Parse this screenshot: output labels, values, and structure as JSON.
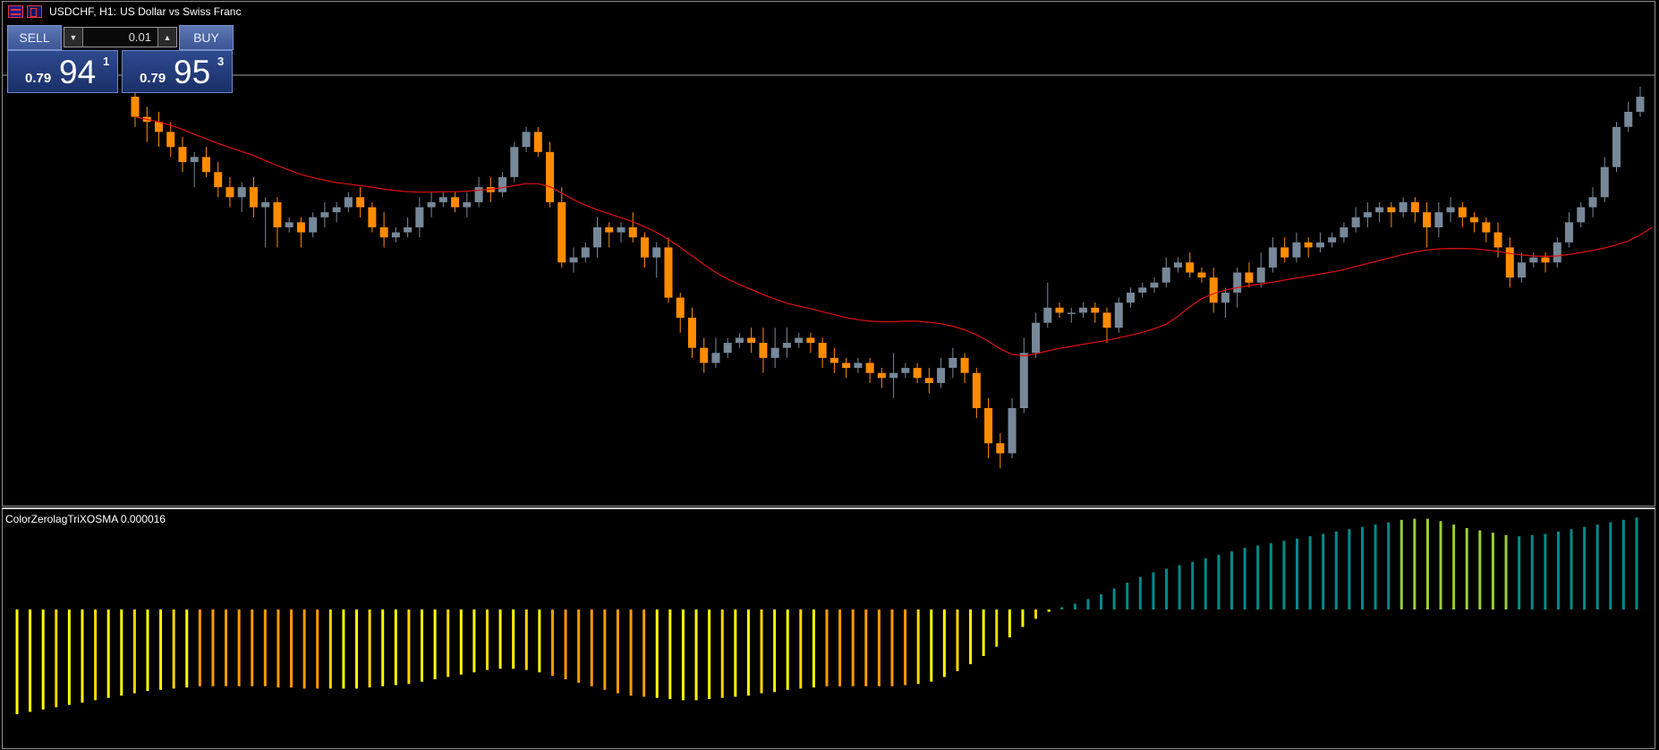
{
  "header": {
    "symbol_label": "USDCHF, H1:",
    "description": "US Dollar vs Swiss Franc"
  },
  "trade_panel": {
    "sell_label": "SELL",
    "buy_label": "BUY",
    "lot_value": "0.01",
    "sell_price": {
      "small": "0.79",
      "big": "94",
      "sup": "1"
    },
    "buy_price": {
      "small": "0.79",
      "big": "95",
      "sup": "3"
    }
  },
  "indicator": {
    "label": "ColorZerolagTriXOSMA 0.000016"
  },
  "colors": {
    "bull_candle": "#778899",
    "bear_candle": "#ff8c00",
    "ma_line": "#e01010",
    "price_line": "#a0a0a0",
    "hist_yellow": "#ffff00",
    "hist_gold": "#ffd700",
    "hist_orange": "#ff9900",
    "hist_teal": "#008b8b",
    "hist_lime": "#9acd32"
  },
  "chart_data": [
    {
      "type": "candlestick",
      "symbol": "USDCHF",
      "timeframe": "H1",
      "title": "US Dollar vs Swiss Franc",
      "ohlc": [
        [
          100,
          96,
          104,
          94
        ],
        [
          96,
          95,
          98,
          91
        ],
        [
          95,
          93,
          97,
          90
        ],
        [
          93,
          90,
          95,
          88
        ],
        [
          90,
          87,
          92,
          85
        ],
        [
          87,
          88,
          89,
          82
        ],
        [
          88,
          85,
          90,
          84
        ],
        [
          85,
          82,
          87,
          80
        ],
        [
          82,
          80,
          84,
          78
        ],
        [
          80,
          82,
          83,
          77
        ],
        [
          82,
          78,
          84,
          76
        ],
        [
          78,
          79,
          80,
          70
        ],
        [
          79,
          74,
          80,
          70
        ],
        [
          74,
          75,
          76,
          73
        ],
        [
          75,
          73,
          76,
          70
        ],
        [
          73,
          76,
          77,
          72
        ],
        [
          76,
          77,
          79,
          74
        ],
        [
          77,
          78,
          79,
          75
        ],
        [
          78,
          80,
          81,
          77
        ],
        [
          80,
          78,
          82,
          76
        ],
        [
          78,
          74,
          79,
          73
        ],
        [
          74,
          72,
          77,
          70
        ],
        [
          72,
          73,
          74,
          71
        ],
        [
          73,
          74,
          76,
          72
        ],
        [
          74,
          78,
          80,
          72
        ],
        [
          78,
          79,
          81,
          76
        ],
        [
          79,
          80,
          81,
          78
        ],
        [
          80,
          78,
          81,
          77
        ],
        [
          78,
          79,
          81,
          76
        ],
        [
          79,
          82,
          84,
          78
        ],
        [
          82,
          81,
          84,
          79
        ],
        [
          81,
          84,
          85,
          80
        ],
        [
          84,
          90,
          91,
          83
        ],
        [
          90,
          93,
          94,
          89
        ],
        [
          93,
          89,
          94,
          88
        ],
        [
          89,
          79,
          91,
          78
        ],
        [
          79,
          67,
          82,
          66
        ],
        [
          67,
          68,
          70,
          65
        ],
        [
          68,
          70,
          71,
          67
        ],
        [
          70,
          74,
          76,
          68
        ],
        [
          74,
          73,
          75,
          70
        ],
        [
          73,
          74,
          75,
          71
        ],
        [
          74,
          72,
          77,
          71
        ],
        [
          72,
          68,
          73,
          66
        ],
        [
          68,
          70,
          71,
          64
        ],
        [
          70,
          60,
          72,
          59
        ],
        [
          60,
          56,
          61,
          53
        ],
        [
          56,
          50,
          58,
          48
        ],
        [
          50,
          47,
          52,
          45
        ],
        [
          47,
          49,
          52,
          46
        ],
        [
          49,
          51,
          52,
          48
        ],
        [
          51,
          52,
          53,
          50
        ],
        [
          52,
          51,
          54,
          49
        ],
        [
          51,
          48,
          54,
          45
        ],
        [
          48,
          50,
          54,
          46
        ],
        [
          50,
          51,
          54,
          48
        ],
        [
          51,
          52,
          53,
          50
        ],
        [
          52,
          51,
          53,
          49
        ],
        [
          51,
          48,
          52,
          46
        ],
        [
          48,
          47,
          50,
          45
        ],
        [
          47,
          46,
          48,
          44
        ],
        [
          46,
          47,
          48,
          45
        ],
        [
          47,
          45,
          48,
          43
        ],
        [
          45,
          44,
          46,
          42
        ],
        [
          44,
          45,
          49,
          40
        ],
        [
          45,
          46,
          47,
          44
        ],
        [
          46,
          44,
          47,
          43
        ],
        [
          44,
          43,
          46,
          41
        ],
        [
          43,
          46,
          48,
          42
        ],
        [
          46,
          48,
          50,
          44
        ],
        [
          48,
          45,
          49,
          43
        ],
        [
          45,
          38,
          46,
          36
        ],
        [
          38,
          31,
          40,
          28
        ],
        [
          31,
          29,
          33,
          26
        ],
        [
          29,
          38,
          40,
          28
        ],
        [
          38,
          49,
          52,
          37
        ],
        [
          49,
          55,
          57,
          48
        ],
        [
          55,
          58,
          63,
          54
        ],
        [
          58,
          57,
          59,
          56
        ],
        [
          57,
          57,
          58,
          55
        ],
        [
          57,
          58,
          59,
          56
        ],
        [
          58,
          57,
          59,
          55
        ],
        [
          57,
          54,
          58,
          51
        ],
        [
          54,
          59,
          60,
          53
        ],
        [
          59,
          61,
          62,
          58
        ],
        [
          61,
          62,
          63,
          60
        ],
        [
          62,
          63,
          64,
          61
        ],
        [
          63,
          66,
          68,
          62
        ],
        [
          66,
          67,
          68,
          65
        ],
        [
          67,
          65,
          69,
          64
        ],
        [
          65,
          64,
          66,
          63
        ],
        [
          64,
          59,
          66,
          57
        ],
        [
          59,
          61,
          62,
          56
        ],
        [
          61,
          65,
          66,
          58
        ],
        [
          65,
          63,
          67,
          62
        ],
        [
          63,
          66,
          69,
          62
        ],
        [
          66,
          70,
          72,
          65
        ],
        [
          70,
          68,
          72,
          67
        ],
        [
          68,
          71,
          73,
          67
        ],
        [
          71,
          70,
          72,
          68
        ],
        [
          70,
          71,
          73,
          69
        ],
        [
          71,
          72,
          73,
          70
        ],
        [
          72,
          74,
          75,
          71
        ],
        [
          74,
          76,
          78,
          73
        ],
        [
          76,
          77,
          79,
          74
        ],
        [
          77,
          78,
          79,
          75
        ],
        [
          78,
          77,
          79,
          74
        ],
        [
          77,
          79,
          80,
          76
        ],
        [
          79,
          77,
          80,
          75
        ],
        [
          77,
          74,
          79,
          70
        ],
        [
          74,
          77,
          79,
          72
        ],
        [
          77,
          78,
          80,
          75
        ],
        [
          78,
          76,
          79,
          74
        ],
        [
          76,
          75,
          77,
          73
        ],
        [
          75,
          73,
          76,
          71
        ],
        [
          73,
          70,
          75,
          68
        ],
        [
          70,
          64,
          72,
          62
        ],
        [
          64,
          67,
          69,
          63
        ],
        [
          67,
          68,
          69,
          66
        ],
        [
          68,
          67,
          69,
          65
        ],
        [
          67,
          71,
          72,
          66
        ],
        [
          71,
          75,
          77,
          70
        ],
        [
          75,
          78,
          79,
          74
        ],
        [
          78,
          80,
          82,
          76
        ],
        [
          80,
          86,
          88,
          79
        ],
        [
          86,
          94,
          95,
          85
        ],
        [
          94,
          97,
          99,
          93
        ],
        [
          97,
          100,
          102,
          96
        ]
      ],
      "moving_average": [
        96,
        95.5,
        95,
        94.3,
        93.5,
        92.5,
        91.6,
        90.7,
        89.9,
        89.1,
        88.3,
        87.3,
        86.3,
        85.4,
        84.5,
        83.9,
        83.4,
        82.9,
        82.6,
        82.3,
        82,
        81.6,
        81.3,
        81.1,
        81,
        81,
        81.1,
        81.1,
        81.2,
        81.4,
        81.6,
        81.9,
        82.3,
        82.7,
        82.7,
        82.1,
        80.8,
        79.5,
        78.4,
        77.5,
        76.7,
        75.9,
        75.1,
        74.1,
        73,
        71.6,
        70,
        68.3,
        66.6,
        65,
        63.7,
        62.6,
        61.6,
        60.6,
        59.7,
        58.9,
        58.3,
        57.8,
        57.2,
        56.6,
        56,
        55.6,
        55.3,
        55.2,
        55.2,
        55.3,
        55.3,
        55.1,
        54.8,
        54.3,
        53.6,
        52.6,
        51.3,
        49.8,
        48.7,
        48.4,
        48.8,
        49.4,
        49.9,
        50.3,
        50.7,
        51.1,
        51.5,
        52,
        52.5,
        53.1,
        53.8,
        54.7,
        56.3,
        58.2,
        59.8,
        60.8,
        61.5,
        62,
        62.4,
        62.7,
        63.1,
        63.5,
        63.9,
        64.3,
        64.7,
        65.1,
        65.6,
        66.2,
        66.8,
        67.4,
        68,
        68.6,
        69.1,
        69.5,
        69.7,
        69.8,
        69.8,
        69.7,
        69.5,
        69.2,
        68.8,
        68.5,
        68.3,
        68.2,
        68.3,
        68.6,
        69,
        69.4,
        69.9,
        70.5,
        71.3,
        72.5,
        74
      ],
      "current_price_line": 0.79941,
      "ylabel": ""
    },
    {
      "type": "bar",
      "title": "ColorZerolagTriXOSMA",
      "last_value": 1.6e-05,
      "values": [
        -0.9,
        -0.88,
        -0.86,
        -0.84,
        -0.82,
        -0.8,
        -0.78,
        -0.76,
        -0.74,
        -0.72,
        -0.7,
        -0.69,
        -0.68,
        -0.67,
        -0.66,
        -0.66,
        -0.66,
        -0.66,
        -0.66,
        -0.66,
        -0.67,
        -0.67,
        -0.68,
        -0.68,
        -0.68,
        -0.68,
        -0.68,
        -0.67,
        -0.66,
        -0.65,
        -0.64,
        -0.62,
        -0.6,
        -0.58,
        -0.56,
        -0.54,
        -0.52,
        -0.51,
        -0.51,
        -0.52,
        -0.54,
        -0.57,
        -0.6,
        -0.63,
        -0.66,
        -0.69,
        -0.72,
        -0.74,
        -0.75,
        -0.76,
        -0.77,
        -0.78,
        -0.78,
        -0.77,
        -0.76,
        -0.75,
        -0.74,
        -0.72,
        -0.71,
        -0.69,
        -0.68,
        -0.67,
        -0.66,
        -0.66,
        -0.66,
        -0.66,
        -0.66,
        -0.66,
        -0.65,
        -0.64,
        -0.62,
        -0.58,
        -0.53,
        -0.47,
        -0.4,
        -0.32,
        -0.24,
        -0.15,
        -0.08,
        -0.02,
        0.02,
        0.05,
        0.09,
        0.13,
        0.18,
        0.23,
        0.28,
        0.32,
        0.35,
        0.38,
        0.41,
        0.44,
        0.47,
        0.5,
        0.53,
        0.55,
        0.57,
        0.59,
        0.61,
        0.63,
        0.65,
        0.67,
        0.69,
        0.71,
        0.73,
        0.75,
        0.77,
        0.78,
        0.78,
        0.76,
        0.73,
        0.7,
        0.68,
        0.66,
        0.64,
        0.63,
        0.64,
        0.65,
        0.67,
        0.69,
        0.71,
        0.73,
        0.75,
        0.77,
        0.79
      ],
      "colors_by_index": "mixed yellow/gold/orange below zero, teal/lime above zero"
    }
  ]
}
